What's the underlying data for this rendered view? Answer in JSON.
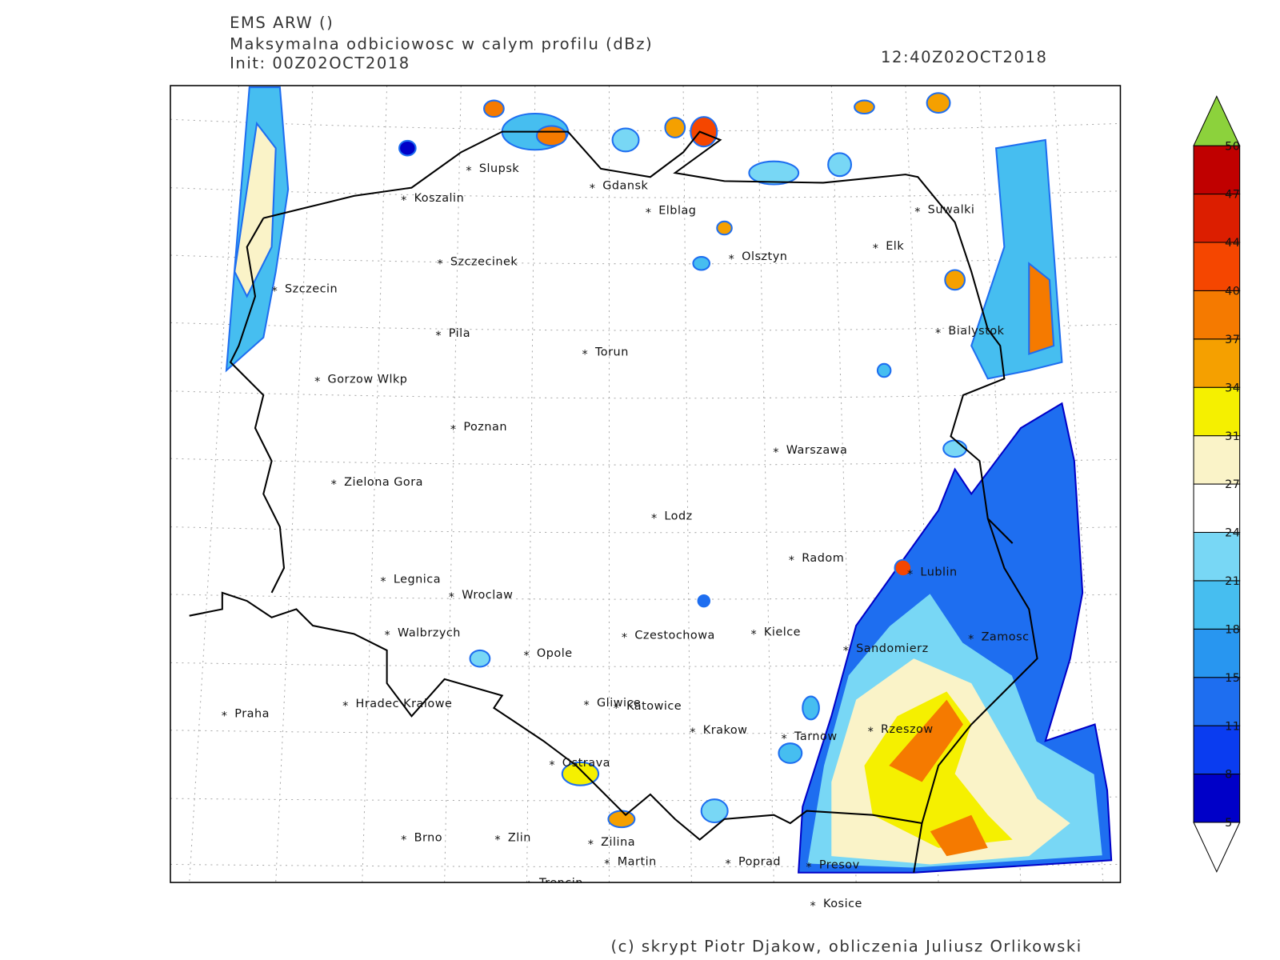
{
  "header": {
    "model": "EMS ARW ()",
    "field": "Maksymalna odbiciowosc w calym profilu (dBz)",
    "init": "Init: 00Z02OCT2018",
    "valid": "12:40Z02OCT2018"
  },
  "cities": [
    "Slupsk",
    "Koszalin",
    "Gdansk",
    "Elblag",
    "Suwalki",
    "Elk",
    "Szczecinek",
    "Olsztyn",
    "Szczecin",
    "Bialystok",
    "Pila",
    "Torun",
    "Gorzow Wlkp",
    "Poznan",
    "Warszawa",
    "Zielona Gora",
    "Lodz",
    "Radom",
    "Lublin",
    "Legnica",
    "Wroclaw",
    "Walbrzych",
    "Czestochowa",
    "Kielce",
    "Zamosc",
    "Sandomierz",
    "Opole",
    "Praha",
    "Hradec Kralowe",
    "Gliwice",
    "Katowice",
    "Krakow",
    "Tarnow",
    "Rzeszow",
    "Ostrava",
    "Brno",
    "Zlin",
    "Zilina",
    "Martin",
    "Poprad",
    "Presov",
    "Trencin",
    "Kosice"
  ],
  "colorbar": {
    "levels": [
      5,
      8,
      11,
      15,
      18,
      21,
      24,
      27,
      31,
      34,
      37,
      40,
      44,
      47,
      50
    ],
    "colors": [
      "#0000c8",
      "#0a3cf0",
      "#1e6ef0",
      "#2896f0",
      "#46bef0",
      "#78d7f5",
      "#ffffff",
      "#faf3c8",
      "#f5f000",
      "#f5a000",
      "#f57a00",
      "#f54600",
      "#dc1e00",
      "#c00000"
    ],
    "over_color": "#8cd23c",
    "under_color": "#ffffff"
  },
  "footer": "(c) skrypt Piotr Djakow, obliczenia Juliusz Orlikowski"
}
